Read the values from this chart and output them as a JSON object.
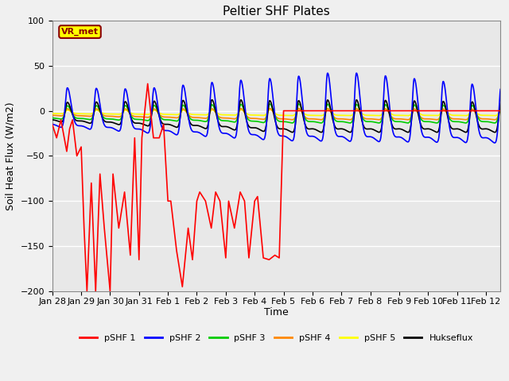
{
  "title": "Peltier SHF Plates",
  "xlabel": "Time",
  "ylabel": "Soil Heat Flux (W/m2)",
  "ylim": [
    -200,
    100
  ],
  "xlim_days": [
    0,
    15.5
  ],
  "xtick_labels": [
    "Jan 28",
    "Jan 29",
    "Jan 30",
    "Jan 31",
    "Feb 1",
    "Feb 2",
    "Feb 3",
    "Feb 4",
    "Feb 5",
    "Feb 6",
    "Feb 7",
    "Feb 8",
    "Feb 9",
    "Feb 10",
    "Feb 11",
    "Feb 12"
  ],
  "xtick_positions": [
    0,
    1,
    2,
    3,
    4,
    5,
    6,
    7,
    8,
    9,
    10,
    11,
    12,
    13,
    14,
    15
  ],
  "bg_color": "#e8e8e8",
  "fig_color": "#f0f0f0",
  "legend_label_box": "VR_met",
  "legend_label_box_facecolor": "#ffff00",
  "legend_label_box_edgecolor": "#8b0000",
  "legend_label_box_textcolor": "#8b0000",
  "series": {
    "pSHF 1": {
      "color": "#ff0000",
      "lw": 1.2,
      "zorder": 5
    },
    "pSHF 2": {
      "color": "#0000ff",
      "lw": 1.2,
      "zorder": 4
    },
    "pSHF 3": {
      "color": "#00cc00",
      "lw": 1.2,
      "zorder": 3
    },
    "pSHF 4": {
      "color": "#ff8800",
      "lw": 1.2,
      "zorder": 3
    },
    "pSHF 5": {
      "color": "#ffff00",
      "lw": 1.2,
      "zorder": 3
    },
    "Hukseflux": {
      "color": "#000000",
      "lw": 1.2,
      "zorder": 4
    }
  },
  "ytick_positions": [
    -200,
    -150,
    -100,
    -50,
    0,
    50,
    100
  ],
  "grid_color": "#ffffff",
  "grid_lw": 1.0,
  "pshf1_x": [
    0,
    0.05,
    0.15,
    0.3,
    0.5,
    0.6,
    0.7,
    0.85,
    1.0,
    1.1,
    1.2,
    1.35,
    1.5,
    1.65,
    1.8,
    2.0,
    2.1,
    2.3,
    2.5,
    2.7,
    2.85,
    3.0,
    3.1,
    3.3,
    3.5,
    3.7,
    3.85,
    4.0,
    4.1,
    4.3,
    4.5,
    4.7,
    4.85,
    5.0,
    5.1,
    5.3,
    5.5,
    5.65,
    5.8,
    6.0,
    6.1,
    6.3,
    6.5,
    6.65,
    6.8,
    7.0,
    7.1,
    7.3,
    7.5,
    7.7,
    7.85,
    8.0,
    8.1,
    8.3,
    8.5,
    8.6,
    8.8,
    9.0,
    9.5,
    10.0,
    15.5
  ],
  "pshf1_y": [
    -15,
    -20,
    -30,
    -10,
    -45,
    -20,
    -10,
    -50,
    -40,
    -130,
    -200,
    -80,
    -200,
    -70,
    -130,
    -200,
    -70,
    -130,
    -90,
    -160,
    -30,
    -165,
    -30,
    30,
    -30,
    -30,
    -15,
    -100,
    -100,
    -155,
    -195,
    -130,
    -165,
    -100,
    -90,
    -100,
    -130,
    -90,
    -100,
    -163,
    -100,
    -130,
    -90,
    -100,
    -163,
    -100,
    -95,
    -163,
    -165,
    -160,
    -163,
    0,
    0,
    0,
    0,
    0,
    0,
    0,
    0,
    0,
    0
  ]
}
